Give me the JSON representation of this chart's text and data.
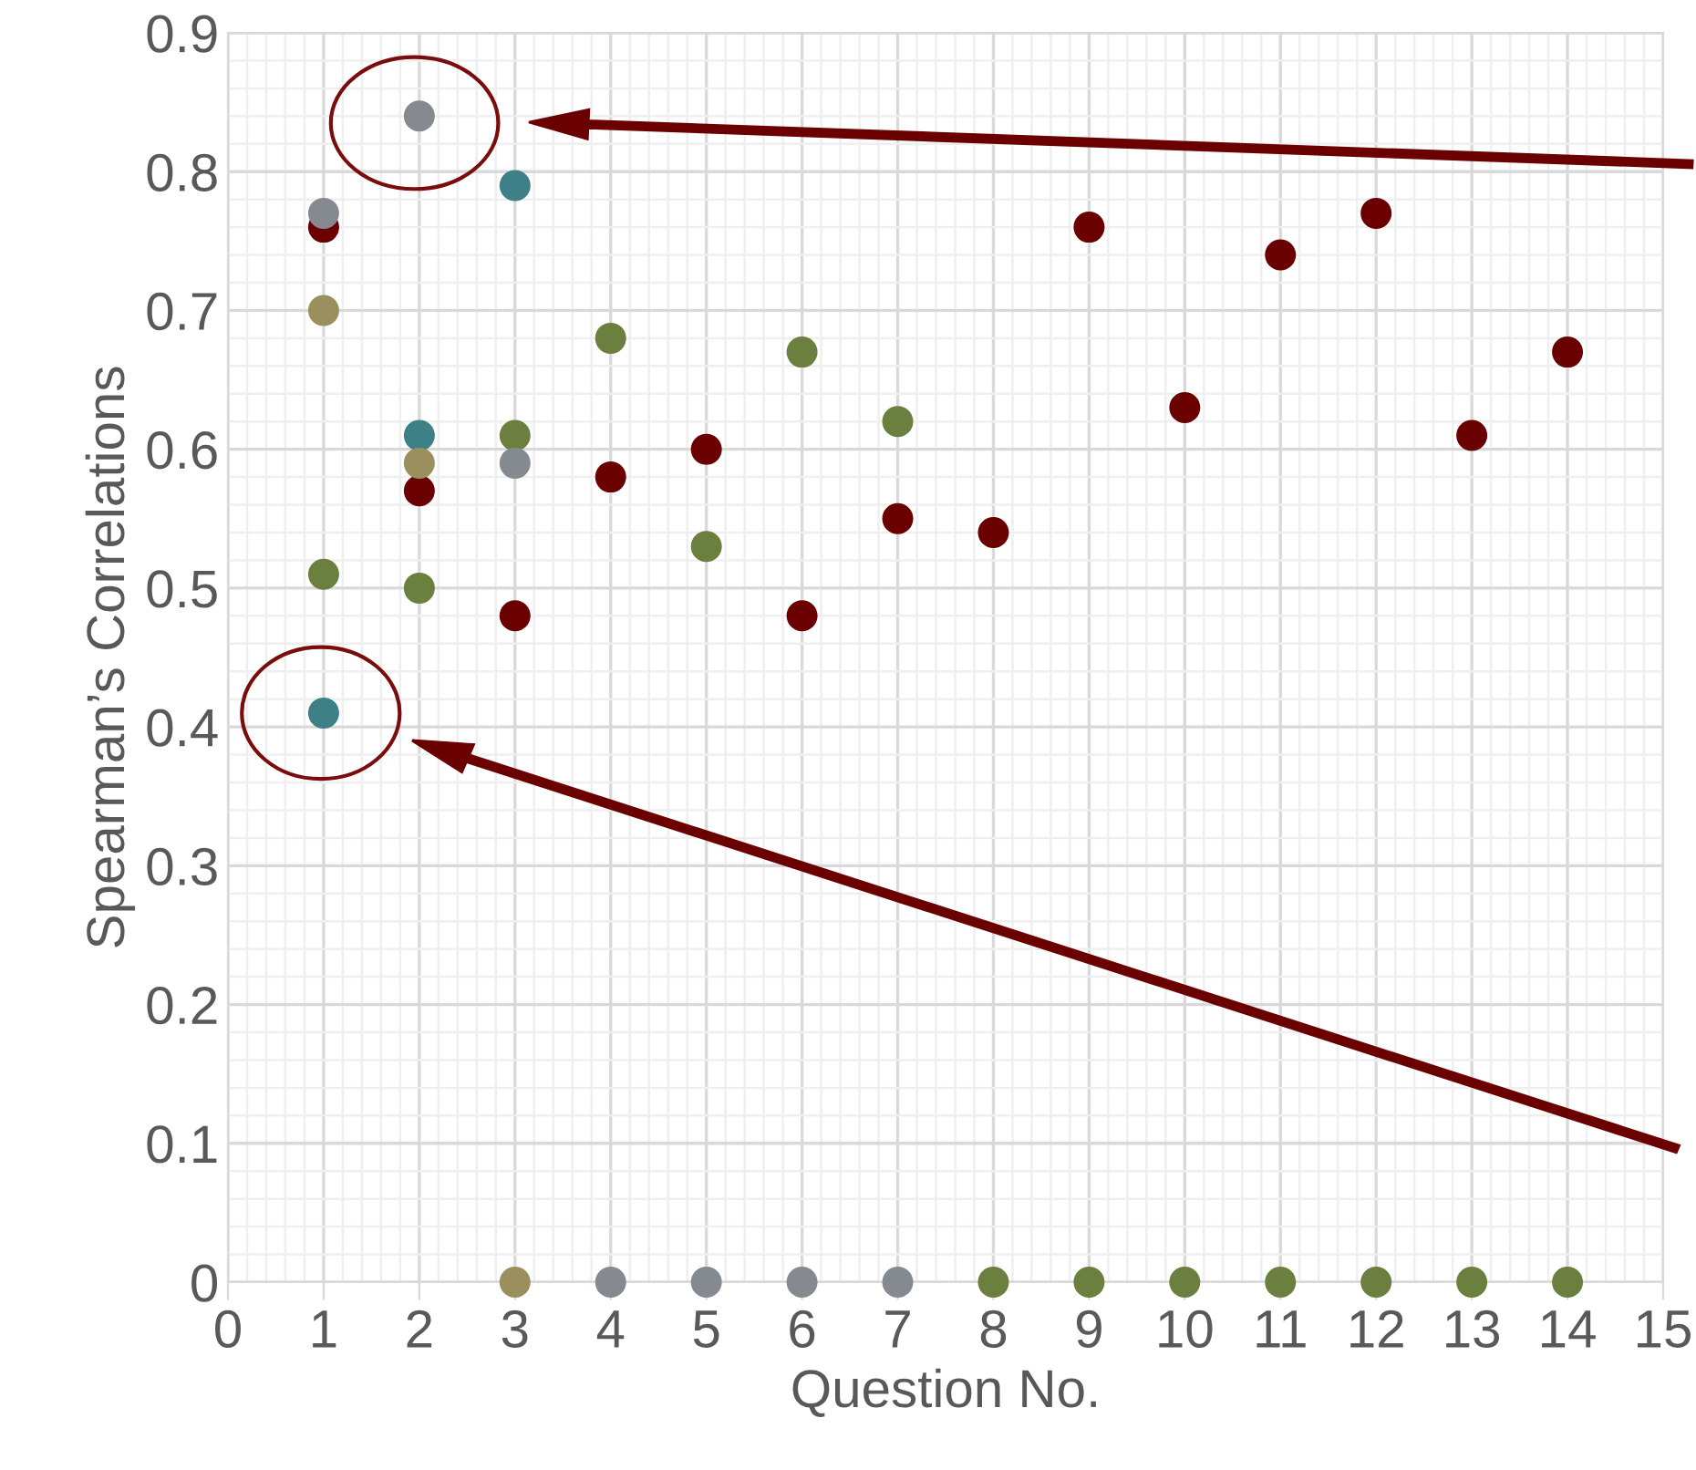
{
  "chart_data": {
    "type": "scatter",
    "xlabel": "Question No.",
    "ylabel": "Spearman’s Correlations",
    "xlim": [
      0,
      15
    ],
    "xticks": [
      0,
      1,
      2,
      3,
      4,
      5,
      6,
      7,
      8,
      9,
      10,
      11,
      12,
      13,
      14,
      15
    ],
    "ylim": [
      0,
      0.9
    ],
    "yticks": [
      0,
      0.1,
      0.2,
      0.3,
      0.4,
      0.5,
      0.6,
      0.7,
      0.8,
      0.9
    ],
    "grid": true,
    "marker": "circle",
    "legend": false,
    "series": [
      {
        "color": "#6b0000",
        "x": [
          1,
          2,
          3,
          4,
          5,
          6,
          7,
          8,
          9,
          10,
          11,
          12,
          13,
          14
        ],
        "values": [
          0.76,
          0.57,
          0.48,
          0.58,
          0.6,
          0.48,
          0.55,
          0.54,
          0.76,
          0.63,
          0.74,
          0.77,
          0.61,
          0.67
        ]
      },
      {
        "color": "#6b7f3e",
        "x": [
          1,
          2,
          3,
          4,
          5,
          6,
          7,
          8,
          9,
          10,
          11,
          12,
          13,
          14
        ],
        "values": [
          0.51,
          0.5,
          0.61,
          0.68,
          0.53,
          0.67,
          0.62,
          0,
          0,
          0,
          0,
          0,
          0,
          0
        ]
      },
      {
        "color": "#3d8088",
        "x": [
          1,
          2,
          3
        ],
        "values": [
          0.41,
          0.61,
          0.79
        ]
      },
      {
        "color": "#858a91",
        "x": [
          1,
          2,
          3,
          4,
          5,
          6,
          7
        ],
        "values": [
          0.77,
          0.84,
          0.59,
          0,
          0,
          0,
          0
        ]
      },
      {
        "color": "#9b8f5e",
        "x": [
          1,
          2,
          3
        ],
        "values": [
          0.7,
          0.59,
          0
        ]
      }
    ]
  }
}
